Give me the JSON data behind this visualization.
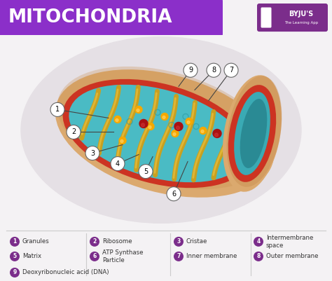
{
  "title": "MITOCHONDRIA",
  "title_color": "#ffffff",
  "title_bg_color": "#8B2FC9",
  "bg_color": "#f4f2f4",
  "legend_items": [
    {
      "num": "1",
      "label": "Granules"
    },
    {
      "num": "2",
      "label": "Ribosome"
    },
    {
      "num": "3",
      "label": "Cristae"
    },
    {
      "num": "4",
      "label": "Intermembrane\nspace"
    },
    {
      "num": "5",
      "label": "Matrix"
    },
    {
      "num": "6",
      "label": "ATP Synthase\nParticle"
    },
    {
      "num": "7",
      "label": "Inner membrane"
    },
    {
      "num": "8",
      "label": "Outer membrane"
    },
    {
      "num": "9",
      "label": "Deoxyribonucleic acid (DNA)"
    }
  ],
  "legend_circle_color": "#7B2D8B",
  "legend_num_color": "#ffffff",
  "divider_color": "#cccccc",
  "byju_purple": "#7B2D8B",
  "outer_color": "#DBA96E",
  "red_color": "#CC3322",
  "teal_color": "#4ABBC4",
  "cristae_color": "#C8A020",
  "dot_yellow": "#F5A800",
  "dot_red": "#AA1111"
}
